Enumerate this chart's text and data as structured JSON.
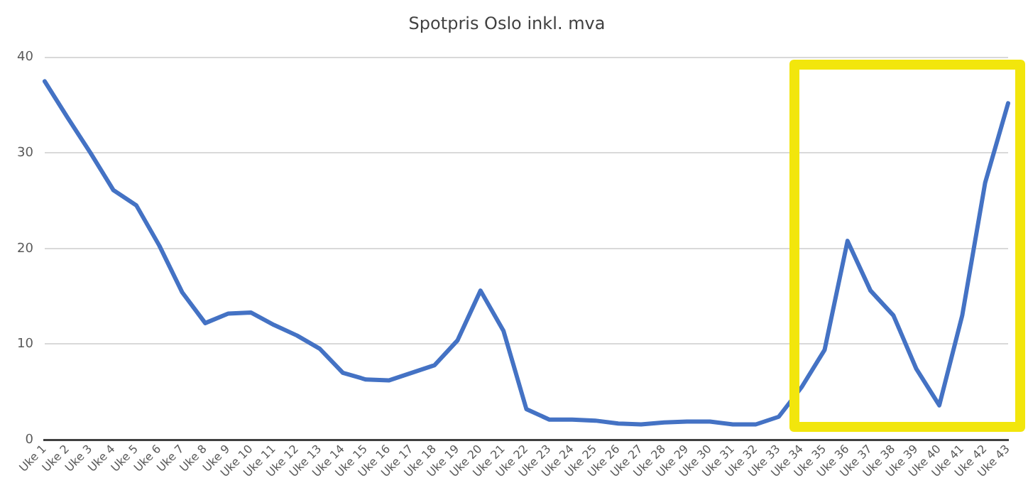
{
  "chart_data": {
    "type": "line",
    "title": "Spotpris Oslo inkl. mva",
    "categories": [
      "Uke 1",
      "Uke 2",
      "Uke 3",
      "Uke 4",
      "Uke 5",
      "Uke 6",
      "Uke 7",
      "Uke 8",
      "Uke 9",
      "Uke 10",
      "Uke 11",
      "Uke 12",
      "Uke 13",
      "Uke 14",
      "Uke 15",
      "Uke 16",
      "Uke 17",
      "Uke 18",
      "Uke 19",
      "Uke 20",
      "Uke 21",
      "Uke 22",
      "Uke 23",
      "Uke 24",
      "Uke 25",
      "Uke 26",
      "Uke 27",
      "Uke 28",
      "Uke 29",
      "Uke 30",
      "Uke 31",
      "Uke 32",
      "Uke 33",
      "Uke 34",
      "Uke 35",
      "Uke 36",
      "Uke 37",
      "Uke 38",
      "Uke 39",
      "Uke 40",
      "Uke 41",
      "Uke 42",
      "Uke 43"
    ],
    "series": [
      {
        "color": "#4472c4",
        "values": [
          37.5,
          33.7,
          30.0,
          26.1,
          24.5,
          20.3,
          15.4,
          12.2,
          13.2,
          13.3,
          12.0,
          10.9,
          9.5,
          7.0,
          6.3,
          6.2,
          7.0,
          7.8,
          10.4,
          15.6,
          11.4,
          3.2,
          2.1,
          2.1,
          2.0,
          1.7,
          1.6,
          1.8,
          1.9,
          1.9,
          1.6,
          1.6,
          2.4,
          5.5,
          9.4,
          20.8,
          15.6,
          13.0,
          7.4,
          3.6,
          13.0,
          26.9,
          35.2
        ]
      }
    ],
    "ylim": [
      0,
      40
    ],
    "yticks": [
      0,
      10,
      20,
      30,
      40
    ],
    "grid": "y",
    "legend": false,
    "marker": "none",
    "line_style": "solid"
  }
}
